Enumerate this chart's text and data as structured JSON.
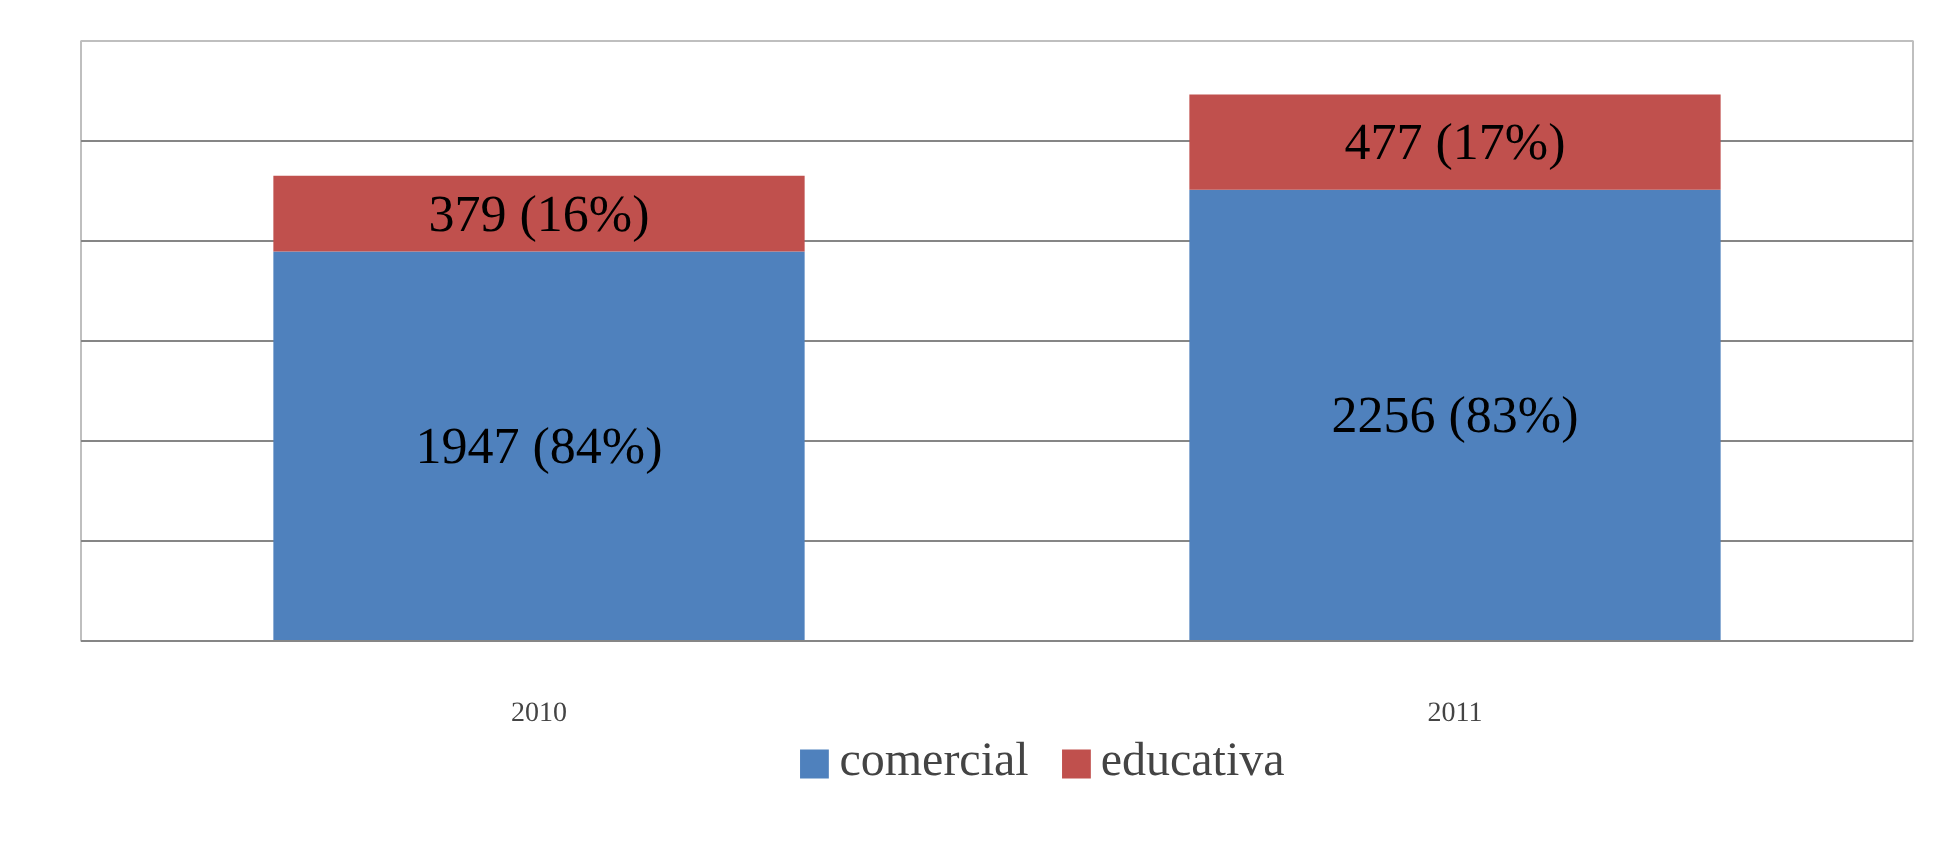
{
  "chart_data": {
    "type": "bar",
    "stacked": true,
    "categories": [
      "2010",
      "2011"
    ],
    "series": [
      {
        "name": "comercial",
        "color": "#4f81bd",
        "values": [
          1947,
          2256
        ],
        "value_labels": [
          "1947 (84%)",
          "2256 (83%)"
        ]
      },
      {
        "name": "educativa",
        "color": "#c0504d",
        "values": [
          379,
          477
        ],
        "value_labels": [
          "379 (16%)",
          "477 (17%)"
        ]
      }
    ],
    "ylim": [
      0,
      3000
    ],
    "yticks": [
      {
        "value": 0,
        "label": null
      },
      {
        "value": 500,
        "label": null
      },
      {
        "value": 1000,
        "label": null
      },
      {
        "value": 1500,
        "label": null
      },
      {
        "value": 2000,
        "label": null
      },
      {
        "value": 2500,
        "label": null
      },
      {
        "value": 3000,
        "label": null
      }
    ],
    "tick_labels": "x",
    "grid": "y",
    "legend": "bottom"
  }
}
